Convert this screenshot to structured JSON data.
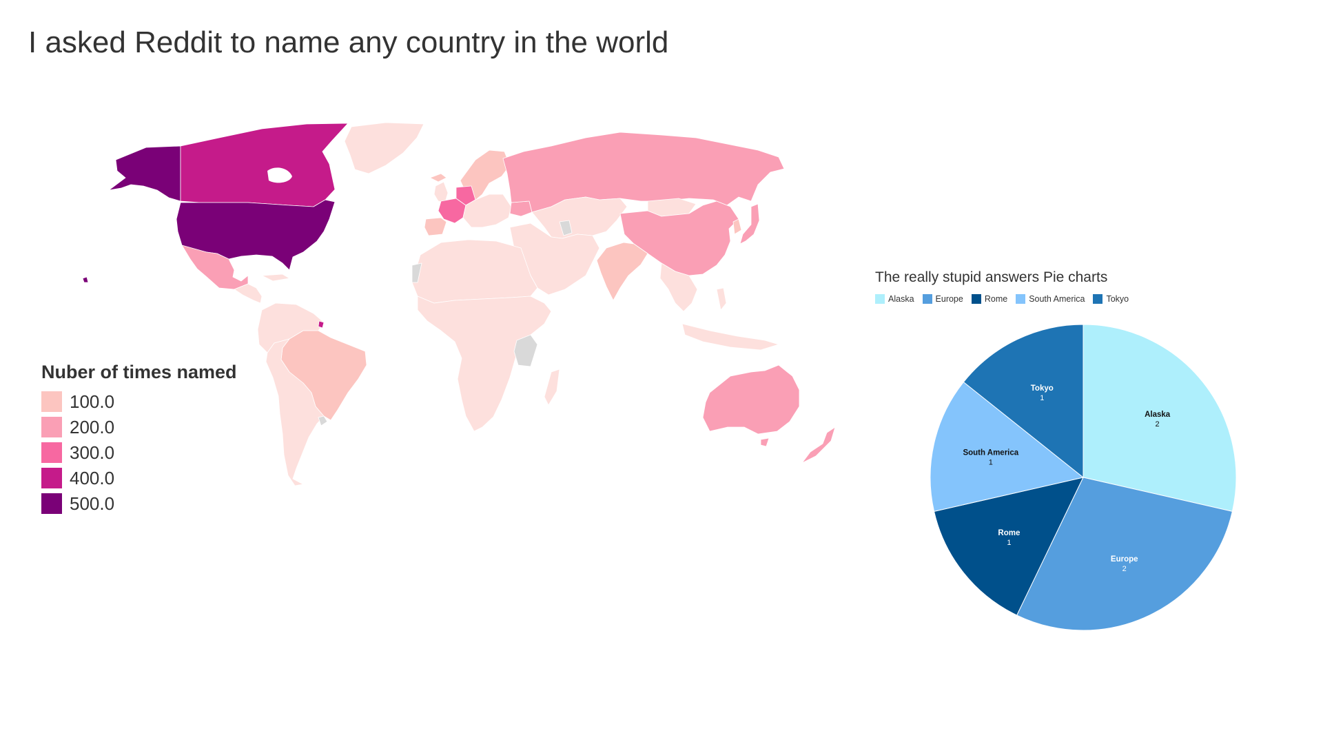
{
  "title": "I asked Reddit to name any country in the world",
  "map": {
    "legend_title": "Nuber of times named",
    "legend": [
      {
        "label": "100.0",
        "color": "#fcc5c0"
      },
      {
        "label": "200.0",
        "color": "#fa9fb5"
      },
      {
        "label": "300.0",
        "color": "#f768a1"
      },
      {
        "label": "400.0",
        "color": "#c51b8a"
      },
      {
        "label": "500.0",
        "color": "#7a0177"
      }
    ],
    "colors": {
      "level0": "#fde0dd",
      "level1": "#fcc5c0",
      "level2": "#fa9fb5",
      "level3": "#f768a1",
      "level4": "#c51b8a",
      "level5": "#7a0177",
      "no_data": "#d9d9d9"
    },
    "regions": [
      {
        "name": "United States",
        "level": 5
      },
      {
        "name": "Alaska",
        "level": 5
      },
      {
        "name": "Canada",
        "level": 4
      },
      {
        "name": "France",
        "level": 3
      },
      {
        "name": "Germany",
        "level": 3
      },
      {
        "name": "Russia",
        "level": 2
      },
      {
        "name": "China",
        "level": 2
      },
      {
        "name": "Australia",
        "level": 2
      },
      {
        "name": "Mexico",
        "level": 2
      },
      {
        "name": "Japan",
        "level": 2
      },
      {
        "name": "Brazil",
        "level": 1
      },
      {
        "name": "India",
        "level": 1
      }
    ]
  },
  "chart_data": {
    "type": "pie",
    "title": "The really stupid answers Pie charts",
    "categories": [
      "Alaska",
      "Europe",
      "Rome",
      "South America",
      "Tokyo"
    ],
    "values": [
      2,
      2,
      1,
      1,
      1
    ],
    "colors": [
      "#aeeffc",
      "#559ede",
      "#00508b",
      "#84c4fc",
      "#1e74b4"
    ],
    "label_colors": [
      "#111111",
      "#ffffff",
      "#ffffff",
      "#111111",
      "#ffffff"
    ],
    "legend_position": "top-left",
    "slice_order": [
      "Alaska",
      "Europe",
      "Rome",
      "South America",
      "Tokyo"
    ]
  }
}
